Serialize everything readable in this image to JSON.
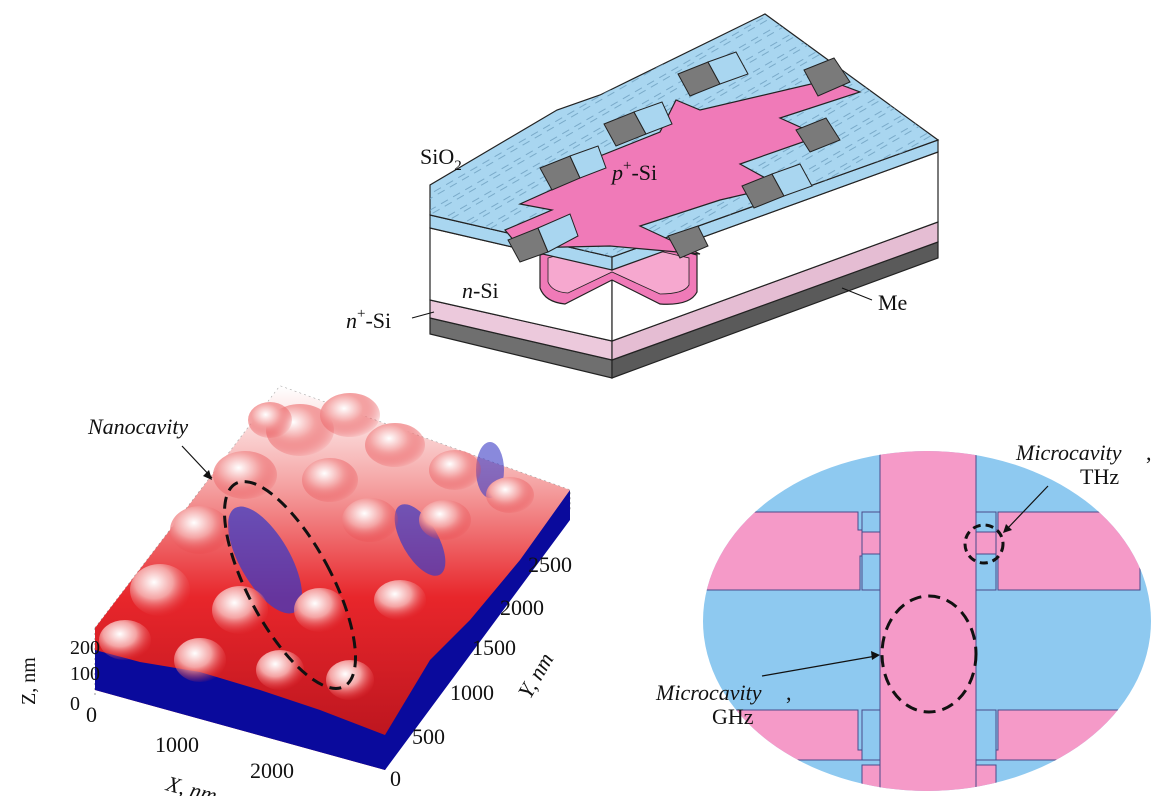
{
  "device": {
    "labels": {
      "sio2": "SiO",
      "sio2_sub": "2",
      "p_si_prefix": "p",
      "p_si_sup": "+",
      "p_si_suffix": "-Si",
      "n_si_prefix": "n",
      "n_si_suffix": "-Si",
      "nplus_prefix": "n",
      "nplus_sup": "+",
      "nplus_suffix": "-Si",
      "me": "Me"
    },
    "colors": {
      "oxide": "#a9d6f0",
      "oxide_dark": "#86bfe0",
      "p_region": "#f07ab8",
      "p_light": "#f6a8cf",
      "n_substrate_layer": "#ecc9dc",
      "metal": "#6f6f6f",
      "pad": "#7a7a7a"
    }
  },
  "afm": {
    "annotation": "Nanocavity",
    "z_axis_label": "Z, nm",
    "x_axis_label": "X, nm",
    "y_axis_label": "Y, nm",
    "z_ticks": [
      "200",
      "100",
      "0"
    ],
    "x_ticks": [
      "0",
      "1000",
      "2000"
    ],
    "y_ticks": [
      "0",
      "500",
      "1000",
      "1500",
      "2000",
      "2500"
    ],
    "colors": {
      "peak": "#ffffff",
      "mid": "#e8262b",
      "valley": "#0a0a9c"
    }
  },
  "zoom": {
    "thz_label_1": "Microcavity",
    "thz_label_2": "THz",
    "ghz_label_1": "Microcavity",
    "ghz_label_2": "GHz",
    "colors": {
      "background": "#8ec9f0",
      "conductor": "#f59ac8",
      "edge": "#4a4a8a"
    }
  }
}
